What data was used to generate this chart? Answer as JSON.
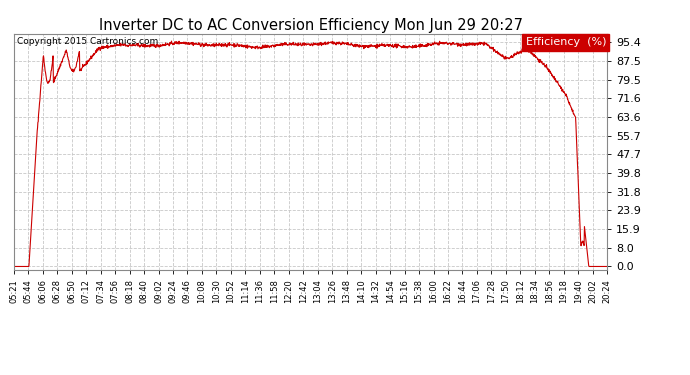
{
  "title": "Inverter DC to AC Conversion Efficiency Mon Jun 29 20:27",
  "copyright": "Copyright 2015 Cartronics.com",
  "legend_label": "Efficiency  (%)",
  "legend_bg": "#cc0000",
  "legend_fg": "#ffffff",
  "line_color": "#cc0000",
  "background_color": "#ffffff",
  "grid_color": "#c8c8c8",
  "yticks": [
    0.0,
    8.0,
    15.9,
    23.9,
    31.8,
    39.8,
    47.7,
    55.7,
    63.6,
    71.6,
    79.5,
    87.5,
    95.4
  ],
  "ylim": [
    -1.5,
    99
  ],
  "x_tick_labels": [
    "05:21",
    "05:44",
    "06:06",
    "06:28",
    "06:50",
    "07:12",
    "07:34",
    "07:56",
    "08:18",
    "08:40",
    "09:02",
    "09:24",
    "09:46",
    "10:08",
    "10:30",
    "10:52",
    "11:14",
    "11:36",
    "11:58",
    "12:20",
    "12:42",
    "13:04",
    "13:26",
    "13:48",
    "14:10",
    "14:32",
    "14:54",
    "15:16",
    "15:38",
    "16:00",
    "16:22",
    "16:44",
    "17:06",
    "17:28",
    "17:50",
    "18:12",
    "18:34",
    "18:56",
    "19:18",
    "19:40",
    "20:02",
    "20:24"
  ]
}
